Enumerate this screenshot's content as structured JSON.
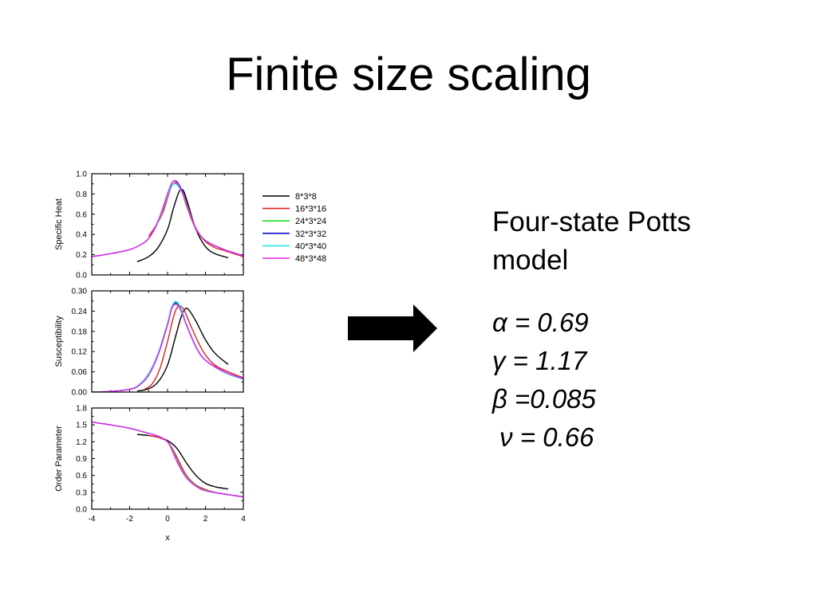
{
  "slide": {
    "title": "Finite size scaling"
  },
  "info": {
    "model_line1": "Four-state Potts",
    "model_line2": "model",
    "params": [
      "α = 0.69",
      "γ = 1.17",
      "β =0.085",
      " ν = 0.66"
    ]
  },
  "arrow": {
    "icon": "right-arrow-icon",
    "color": "#000000"
  },
  "chart_data": [
    {
      "type": "line",
      "title": "",
      "xlabel": "",
      "ylabel": "Specific Heat",
      "xlim": [
        -4,
        4
      ],
      "ylim": [
        0.0,
        1.0
      ],
      "yticks": [
        "0.0",
        "0.2",
        "0.4",
        "0.6",
        "0.8",
        "1.0"
      ],
      "legend_position": "right",
      "series": [
        {
          "name": "8*3*8",
          "color": "#000000",
          "x": [
            -1.6,
            -1.0,
            -0.5,
            0.0,
            0.3,
            0.6,
            0.8,
            1.0,
            1.5,
            2.0,
            2.5,
            3.2
          ],
          "y": [
            0.13,
            0.18,
            0.27,
            0.45,
            0.65,
            0.82,
            0.84,
            0.75,
            0.45,
            0.28,
            0.21,
            0.17
          ]
        },
        {
          "name": "16*3*16",
          "color": "#e02020",
          "x": [
            -1.0,
            -0.5,
            -0.2,
            0.0,
            0.2,
            0.4,
            0.6,
            0.8,
            1.0,
            1.5,
            2.0,
            2.5,
            3.0,
            4.0
          ],
          "y": [
            0.38,
            0.52,
            0.64,
            0.76,
            0.87,
            0.91,
            0.88,
            0.8,
            0.68,
            0.45,
            0.33,
            0.27,
            0.24,
            0.18
          ]
        },
        {
          "name": "24*3*24",
          "color": "#22dd22",
          "x": [
            -4.0,
            -3.0,
            -2.0,
            -1.5,
            -1.0,
            -0.5,
            0.0,
            0.2,
            0.4,
            0.6,
            0.8,
            1.0,
            1.5,
            2.0,
            3.0,
            4.0
          ],
          "y": [
            0.18,
            0.21,
            0.25,
            0.29,
            0.36,
            0.52,
            0.78,
            0.88,
            0.9,
            0.87,
            0.8,
            0.69,
            0.46,
            0.34,
            0.25,
            0.19
          ]
        },
        {
          "name": "32*3*32",
          "color": "#1010cc",
          "x": [
            -4.0,
            -3.0,
            -2.0,
            -1.5,
            -1.0,
            -0.5,
            0.0,
            0.2,
            0.35,
            0.5,
            0.7,
            0.9,
            1.2,
            1.5,
            2.0,
            3.0,
            4.0
          ],
          "y": [
            0.18,
            0.21,
            0.25,
            0.29,
            0.36,
            0.53,
            0.8,
            0.9,
            0.93,
            0.92,
            0.86,
            0.77,
            0.6,
            0.46,
            0.34,
            0.25,
            0.19
          ]
        },
        {
          "name": "40*3*40",
          "color": "#22e5ee",
          "x": [
            -4.0,
            -3.0,
            -2.0,
            -1.5,
            -1.0,
            -0.5,
            0.0,
            0.2,
            0.35,
            0.5,
            0.7,
            0.9,
            1.2,
            1.5,
            2.0,
            3.0,
            4.0
          ],
          "y": [
            0.18,
            0.21,
            0.25,
            0.29,
            0.36,
            0.52,
            0.78,
            0.87,
            0.9,
            0.89,
            0.84,
            0.76,
            0.6,
            0.46,
            0.34,
            0.25,
            0.19
          ]
        },
        {
          "name": "48*3*48",
          "color": "#ee22ee",
          "x": [
            -4.0,
            -3.0,
            -2.0,
            -1.5,
            -1.0,
            -0.5,
            0.0,
            0.2,
            0.35,
            0.5,
            0.7,
            0.9,
            1.2,
            1.5,
            2.0,
            3.0,
            4.0
          ],
          "y": [
            0.18,
            0.21,
            0.25,
            0.29,
            0.36,
            0.53,
            0.8,
            0.9,
            0.93,
            0.91,
            0.85,
            0.76,
            0.6,
            0.46,
            0.34,
            0.25,
            0.19
          ]
        }
      ]
    },
    {
      "type": "line",
      "title": "",
      "xlabel": "",
      "ylabel": "Susceptibility",
      "xlim": [
        -4,
        4
      ],
      "ylim": [
        0.0,
        0.3
      ],
      "yticks": [
        "0.00",
        "0.06",
        "0.12",
        "0.18",
        "0.24",
        "0.30"
      ],
      "series": [
        {
          "name": "8*3*8",
          "color": "#000000",
          "x": [
            -1.6,
            -1.0,
            -0.5,
            0.0,
            0.4,
            0.7,
            0.9,
            1.1,
            1.5,
            2.0,
            2.5,
            3.2
          ],
          "y": [
            0.003,
            0.01,
            0.03,
            0.08,
            0.16,
            0.22,
            0.245,
            0.245,
            0.21,
            0.155,
            0.115,
            0.082
          ]
        },
        {
          "name": "16*3*16",
          "color": "#e02020",
          "x": [
            -1.2,
            -0.8,
            -0.4,
            0.0,
            0.3,
            0.5,
            0.7,
            0.9,
            1.2,
            1.6,
            2.0,
            2.5,
            3.0,
            4.0
          ],
          "y": [
            0.008,
            0.025,
            0.07,
            0.15,
            0.22,
            0.25,
            0.255,
            0.24,
            0.2,
            0.15,
            0.11,
            0.08,
            0.065,
            0.042
          ]
        },
        {
          "name": "24*3*24",
          "color": "#22dd22",
          "x": [
            -4.0,
            -3.0,
            -2.0,
            -1.5,
            -1.0,
            -0.5,
            0.0,
            0.2,
            0.4,
            0.6,
            0.8,
            1.0,
            1.5,
            2.0,
            3.0,
            4.0
          ],
          "y": [
            0.0,
            0.002,
            0.008,
            0.02,
            0.05,
            0.11,
            0.2,
            0.245,
            0.262,
            0.255,
            0.23,
            0.2,
            0.135,
            0.095,
            0.06,
            0.04
          ]
        },
        {
          "name": "32*3*32",
          "color": "#1010cc",
          "x": [
            -4.0,
            -3.0,
            -2.0,
            -1.5,
            -1.0,
            -0.5,
            0.0,
            0.2,
            0.4,
            0.6,
            0.8,
            1.0,
            1.5,
            2.0,
            3.0,
            4.0
          ],
          "y": [
            0.0,
            0.002,
            0.008,
            0.02,
            0.05,
            0.11,
            0.2,
            0.245,
            0.265,
            0.258,
            0.232,
            0.2,
            0.135,
            0.095,
            0.06,
            0.04
          ]
        },
        {
          "name": "40*3*40",
          "color": "#22e5ee",
          "x": [
            -4.0,
            -3.0,
            -2.0,
            -1.5,
            -1.0,
            -0.5,
            0.0,
            0.2,
            0.4,
            0.6,
            0.8,
            1.0,
            1.5,
            2.0,
            3.0,
            4.0
          ],
          "y": [
            0.0,
            0.002,
            0.009,
            0.022,
            0.055,
            0.115,
            0.205,
            0.25,
            0.268,
            0.26,
            0.235,
            0.2,
            0.135,
            0.095,
            0.058,
            0.038
          ]
        },
        {
          "name": "48*3*48",
          "color": "#ee22ee",
          "x": [
            -4.0,
            -3.0,
            -2.0,
            -1.5,
            -1.0,
            -0.5,
            0.0,
            0.2,
            0.4,
            0.6,
            0.8,
            1.0,
            1.5,
            2.0,
            3.0,
            4.0
          ],
          "y": [
            0.0,
            0.002,
            0.008,
            0.02,
            0.05,
            0.11,
            0.2,
            0.245,
            0.26,
            0.252,
            0.228,
            0.198,
            0.133,
            0.094,
            0.06,
            0.04
          ]
        }
      ]
    },
    {
      "type": "line",
      "title": "",
      "xlabel": "x",
      "ylabel": "Order Parameter",
      "xlim": [
        -4,
        4
      ],
      "ylim": [
        0.0,
        1.8
      ],
      "xticks": [
        "-4",
        "-2",
        "0",
        "2",
        "4"
      ],
      "yticks": [
        "0.0",
        "0.3",
        "0.6",
        "0.9",
        "1.2",
        "1.5",
        "1.8"
      ],
      "series": [
        {
          "name": "8*3*8",
          "color": "#000000",
          "x": [
            -1.6,
            -1.0,
            -0.5,
            0.0,
            0.5,
            1.0,
            1.5,
            2.0,
            2.5,
            3.2
          ],
          "y": [
            1.33,
            1.31,
            1.28,
            1.22,
            1.08,
            0.82,
            0.6,
            0.46,
            0.4,
            0.36
          ]
        },
        {
          "name": "16*3*16",
          "color": "#e02020",
          "x": [
            -1.0,
            -0.5,
            0.0,
            0.3,
            0.6,
            1.0,
            1.5,
            2.0,
            2.5,
            3.0,
            4.0
          ],
          "y": [
            1.31,
            1.28,
            1.2,
            1.05,
            0.85,
            0.6,
            0.43,
            0.35,
            0.3,
            0.27,
            0.22
          ]
        },
        {
          "name": "24*3*24",
          "color": "#22dd22",
          "x": [
            -4.0,
            -3.0,
            -2.0,
            -1.0,
            -0.5,
            0.0,
            0.3,
            0.6,
            1.0,
            1.5,
            2.0,
            3.0,
            4.0
          ],
          "y": [
            1.55,
            1.5,
            1.44,
            1.35,
            1.3,
            1.2,
            1.02,
            0.8,
            0.58,
            0.42,
            0.34,
            0.27,
            0.22
          ]
        },
        {
          "name": "32*3*32",
          "color": "#1010cc",
          "x": [
            -4.0,
            -3.0,
            -2.0,
            -1.0,
            -0.5,
            0.0,
            0.3,
            0.6,
            1.0,
            1.5,
            2.0,
            3.0,
            4.0
          ],
          "y": [
            1.55,
            1.5,
            1.44,
            1.35,
            1.3,
            1.2,
            1.0,
            0.78,
            0.56,
            0.41,
            0.33,
            0.27,
            0.22
          ]
        },
        {
          "name": "40*3*40",
          "color": "#22e5ee",
          "x": [
            -4.0,
            -3.0,
            -2.0,
            -1.0,
            -0.5,
            0.0,
            0.3,
            0.6,
            1.0,
            1.5,
            2.0,
            3.0,
            4.0
          ],
          "y": [
            1.55,
            1.5,
            1.44,
            1.35,
            1.3,
            1.2,
            1.01,
            0.79,
            0.57,
            0.41,
            0.33,
            0.27,
            0.22
          ]
        },
        {
          "name": "48*3*48",
          "color": "#ee22ee",
          "x": [
            -4.0,
            -3.0,
            -2.0,
            -1.0,
            -0.5,
            0.0,
            0.3,
            0.6,
            1.0,
            1.5,
            2.0,
            3.0,
            4.0
          ],
          "y": [
            1.55,
            1.5,
            1.44,
            1.35,
            1.3,
            1.2,
            1.0,
            0.78,
            0.56,
            0.41,
            0.33,
            0.27,
            0.22
          ]
        }
      ]
    }
  ]
}
